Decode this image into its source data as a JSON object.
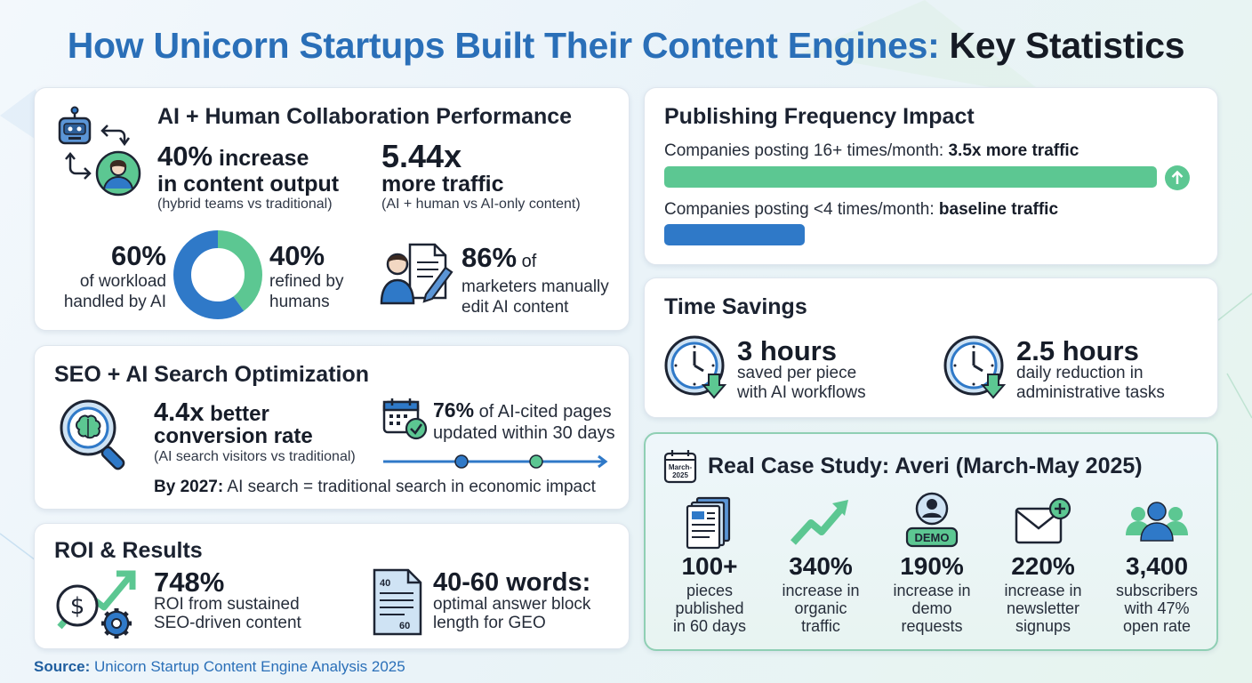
{
  "title": {
    "part_blue": "How Unicorn Startups Built Their Content Engines:",
    "part_dark": "Key Statistics"
  },
  "ai_human": {
    "title": "AI + Human Collaboration Performance",
    "stat1": {
      "value": "40%",
      "value_suffix": " increase",
      "line2": "in content output",
      "note": "(hybrid teams vs traditional)"
    },
    "stat2": {
      "value": "5.44x",
      "line2": "more traffic",
      "note": "(AI + human vs AI-only content)"
    },
    "donut_left": {
      "value": "60%",
      "line1": "of workload",
      "line2": "handled by AI"
    },
    "donut_right": {
      "value": "40%",
      "line1": "refined by",
      "line2": "humans"
    },
    "marketers": {
      "value": "86%",
      "value_suffix": " of",
      "line1": "marketers manually",
      "line2": "edit AI content"
    }
  },
  "seo": {
    "title": "SEO + AI Search Optimization",
    "conversion": {
      "value": "4.4x",
      "value_suffix": " better",
      "line2": "conversion rate",
      "note": "(AI search visitors vs traditional)"
    },
    "cited": {
      "value": "76%",
      "value_suffix": " of AI-cited pages",
      "line2": "updated within 30 days"
    },
    "by2027": {
      "label": "By 2027:",
      "text": " AI search = traditional search in economic impact"
    }
  },
  "roi": {
    "title": "ROI & Results",
    "roi_stat": {
      "value": "748%",
      "line1": "ROI from sustained",
      "line2": "SEO-driven content"
    },
    "words": {
      "value": "40-60 words:",
      "line1": "optimal answer block",
      "line2": "length for GEO",
      "doc_top": "40",
      "doc_bottom": "60"
    }
  },
  "publishing": {
    "title": "Publishing Frequency Impact",
    "row1": {
      "label": "Companies posting 16+ times/month: ",
      "emphasis": "3.5x more traffic"
    },
    "row2": {
      "label": "Companies posting <4 times/month: ",
      "emphasis": "baseline traffic"
    }
  },
  "time": {
    "title": "Time Savings",
    "item1": {
      "value": "3 hours",
      "line1": "saved per piece",
      "line2": "with AI workflows"
    },
    "item2": {
      "value": "2.5 hours",
      "line1": "daily reduction in",
      "line2": "administrative tasks"
    }
  },
  "case_study": {
    "title": "Real Case Study: Averi (March-May 2025)",
    "calendar_label_top": "March-",
    "calendar_label_bottom": "2025",
    "demo_label": "DEMO",
    "items": [
      {
        "value": "100+",
        "line1": "pieces",
        "line2": "published",
        "line3": "in 60 days",
        "icon": "documents-icon"
      },
      {
        "value": "340%",
        "line1": "increase in",
        "line2": "organic",
        "line3": "traffic",
        "icon": "trend-up-icon"
      },
      {
        "value": "190%",
        "line1": "increase in",
        "line2": "demo",
        "line3": "requests",
        "icon": "demo-user-icon"
      },
      {
        "value": "220%",
        "line1": "increase in",
        "line2": "newsletter",
        "line3": "signups",
        "icon": "envelope-plus-icon"
      },
      {
        "value": "3,400",
        "line1": "subscribers",
        "line2": "with 47%",
        "line3": "open rate",
        "icon": "group-icon"
      }
    ]
  },
  "source": {
    "label": "Source:",
    "text": " Unicorn Startup Content Engine Analysis 2025"
  },
  "chart_data": [
    {
      "type": "pie",
      "title": "",
      "slices": [
        {
          "name": "handled by AI",
          "value": 60,
          "color": "#2f79c8"
        },
        {
          "name": "refined by humans",
          "value": 40,
          "color": "#5cc792"
        }
      ]
    },
    {
      "type": "bar",
      "title": "Publishing Frequency Impact",
      "categories": [
        "Companies posting 16+ times/month",
        "Companies posting <4 times/month"
      ],
      "values": [
        3.5,
        1.0
      ],
      "colors": [
        "#5cc792",
        "#2f79c8"
      ]
    }
  ],
  "colors": {
    "blue": "#2f79c8",
    "green": "#5cc792",
    "title_blue": "#2a6fb8"
  }
}
